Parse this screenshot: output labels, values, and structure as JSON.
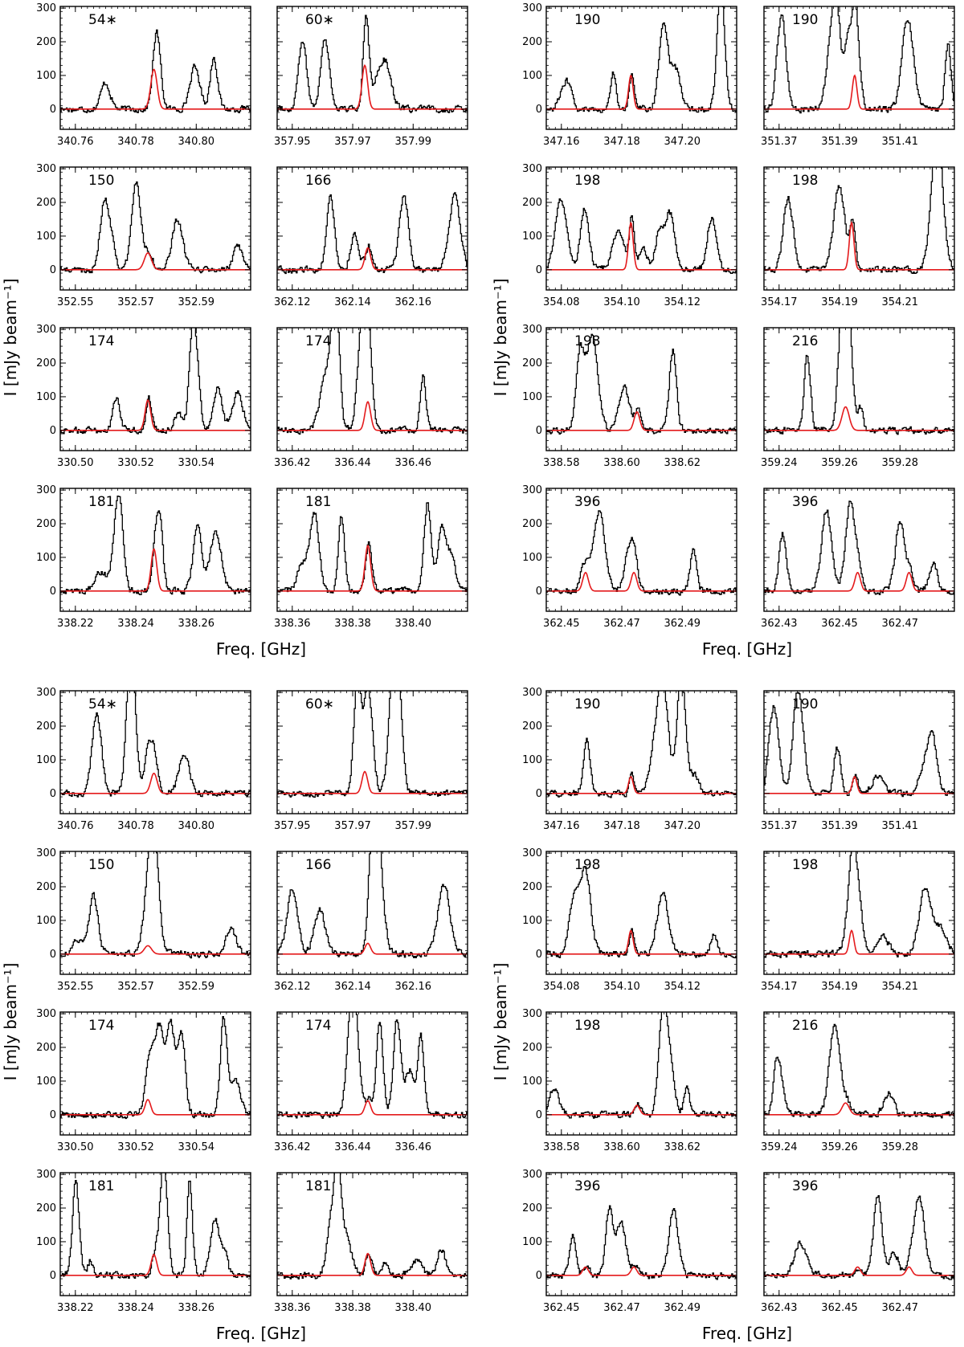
{
  "figure": {
    "axis_titles": {
      "ylabel": "I [mJy beam⁻¹]",
      "xlabel": "Freq. [GHz]"
    },
    "y_ticks": [
      "0",
      "100",
      "200",
      "300"
    ],
    "colors": {
      "spectrum": "#000000",
      "model": "#e41a1c",
      "frame": "#000000"
    }
  },
  "chart_data": [
    {
      "type": "line",
      "block": "top-left",
      "row": 0,
      "col": 0,
      "label": "54∗",
      "x_ticks": [
        "340.76",
        "340.78",
        "340.80"
      ],
      "xlim": [
        340.755,
        340.818
      ],
      "ylim": [
        -60,
        305
      ],
      "model_center": 340.786,
      "model_peak": 118,
      "model_fwhm": 0.0025,
      "xlabel": "Freq. [GHz]",
      "ylabel": "I [mJy beam⁻¹]"
    },
    {
      "type": "line",
      "block": "top-left",
      "row": 0,
      "col": 1,
      "label": "60∗",
      "x_ticks": [
        "357.95",
        "357.97",
        "357.99"
      ],
      "xlim": [
        357.945,
        358.008
      ],
      "ylim": [
        -60,
        305
      ],
      "model_center": 357.974,
      "model_peak": 130,
      "model_fwhm": 0.0022,
      "xlabel": "Freq. [GHz]",
      "ylabel": "I [mJy beam⁻¹]"
    },
    {
      "type": "line",
      "block": "top-left",
      "row": 1,
      "col": 0,
      "label": "150",
      "x_ticks": [
        "352.55",
        "352.57",
        "352.59"
      ],
      "xlim": [
        352.545,
        352.608
      ],
      "ylim": [
        -60,
        305
      ],
      "model_center": 352.574,
      "model_peak": 50,
      "model_fwhm": 0.0028,
      "xlabel": "Freq. [GHz]",
      "ylabel": "I [mJy beam⁻¹]"
    },
    {
      "type": "line",
      "block": "top-left",
      "row": 1,
      "col": 1,
      "label": "166",
      "x_ticks": [
        "362.12",
        "362.14",
        "362.16"
      ],
      "xlim": [
        362.115,
        362.178
      ],
      "ylim": [
        -60,
        305
      ],
      "model_center": 362.145,
      "model_peak": 65,
      "model_fwhm": 0.0022,
      "xlabel": "Freq. [GHz]",
      "ylabel": "I [mJy beam⁻¹]"
    },
    {
      "type": "line",
      "block": "top-left",
      "row": 2,
      "col": 0,
      "label": "174",
      "x_ticks": [
        "330.50",
        "330.52",
        "330.54"
      ],
      "xlim": [
        330.495,
        330.558
      ],
      "ylim": [
        -60,
        305
      ],
      "model_center": 330.524,
      "model_peak": 90,
      "model_fwhm": 0.0022,
      "xlabel": "Freq. [GHz]",
      "ylabel": "I [mJy beam⁻¹]"
    },
    {
      "type": "line",
      "block": "top-left",
      "row": 2,
      "col": 1,
      "label": "174",
      "x_ticks": [
        "336.42",
        "336.44",
        "336.46"
      ],
      "xlim": [
        336.415,
        336.478
      ],
      "ylim": [
        -60,
        305
      ],
      "model_center": 336.445,
      "model_peak": 85,
      "model_fwhm": 0.0022,
      "xlabel": "Freq. [GHz]",
      "ylabel": "I [mJy beam⁻¹]"
    },
    {
      "type": "line",
      "block": "top-left",
      "row": 3,
      "col": 0,
      "label": "181",
      "x_ticks": [
        "338.22",
        "338.24",
        "338.26"
      ],
      "xlim": [
        338.215,
        338.278
      ],
      "ylim": [
        -60,
        305
      ],
      "model_center": 338.246,
      "model_peak": 125,
      "model_fwhm": 0.0022,
      "xlabel": "Freq. [GHz]",
      "ylabel": "I [mJy beam⁻¹]"
    },
    {
      "type": "line",
      "block": "top-left",
      "row": 3,
      "col": 1,
      "label": "181",
      "x_ticks": [
        "338.36",
        "338.38",
        "338.40"
      ],
      "xlim": [
        338.355,
        338.418
      ],
      "ylim": [
        -60,
        305
      ],
      "model_center": 338.385,
      "model_peak": 135,
      "model_fwhm": 0.0022,
      "xlabel": "Freq. [GHz]",
      "ylabel": "I [mJy beam⁻¹]"
    },
    {
      "type": "line",
      "block": "top-right",
      "row": 0,
      "col": 0,
      "label": "190",
      "x_ticks": [
        "347.16",
        "347.18",
        "347.20"
      ],
      "xlim": [
        347.155,
        347.218
      ],
      "ylim": [
        -60,
        305
      ],
      "model_center": 347.183,
      "model_peak": 100,
      "model_fwhm": 0.0018,
      "xlabel": "Freq. [GHz]",
      "ylabel": "I [mJy beam⁻¹]"
    },
    {
      "type": "line",
      "block": "top-right",
      "row": 0,
      "col": 1,
      "label": "190",
      "x_ticks": [
        "351.37",
        "351.39",
        "351.41"
      ],
      "xlim": [
        351.365,
        351.428
      ],
      "ylim": [
        -60,
        305
      ],
      "model_center": 351.395,
      "model_peak": 100,
      "model_fwhm": 0.0018,
      "xlabel": "Freq. [GHz]",
      "ylabel": "I [mJy beam⁻¹]"
    },
    {
      "type": "line",
      "block": "top-right",
      "row": 1,
      "col": 0,
      "label": "198",
      "x_ticks": [
        "354.08",
        "354.10",
        "354.12"
      ],
      "xlim": [
        354.075,
        354.138
      ],
      "ylim": [
        -60,
        305
      ],
      "model_center": 354.103,
      "model_peak": 140,
      "model_fwhm": 0.0018,
      "xlabel": "Freq. [GHz]",
      "ylabel": "I [mJy beam⁻¹]"
    },
    {
      "type": "line",
      "block": "top-right",
      "row": 1,
      "col": 1,
      "label": "198",
      "x_ticks": [
        "354.17",
        "354.19",
        "354.21"
      ],
      "xlim": [
        354.165,
        354.228
      ],
      "ylim": [
        -60,
        305
      ],
      "model_center": 354.194,
      "model_peak": 140,
      "model_fwhm": 0.0018,
      "xlabel": "Freq. [GHz]",
      "ylabel": "I [mJy beam⁻¹]"
    },
    {
      "type": "line",
      "block": "top-right",
      "row": 2,
      "col": 0,
      "label": "198",
      "x_ticks": [
        "338.58",
        "338.60",
        "338.62"
      ],
      "xlim": [
        338.575,
        338.638
      ],
      "ylim": [
        -60,
        305
      ],
      "model_center": 338.605,
      "model_peak": 55,
      "model_fwhm": 0.0022,
      "xlabel": "Freq. [GHz]",
      "ylabel": "I [mJy beam⁻¹]"
    },
    {
      "type": "line",
      "block": "top-right",
      "row": 2,
      "col": 1,
      "label": "216",
      "x_ticks": [
        "359.24",
        "359.26",
        "359.28"
      ],
      "xlim": [
        359.235,
        359.298
      ],
      "ylim": [
        -60,
        305
      ],
      "model_center": 359.262,
      "model_peak": 70,
      "model_fwhm": 0.0028,
      "xlabel": "Freq. [GHz]",
      "ylabel": "I [mJy beam⁻¹]"
    },
    {
      "type": "line",
      "block": "top-right",
      "row": 3,
      "col": 0,
      "label": "396",
      "x_ticks": [
        "362.45",
        "362.47",
        "362.49"
      ],
      "xlim": [
        362.445,
        362.508
      ],
      "ylim": [
        -60,
        305
      ],
      "model_centers": [
        362.458,
        362.474
      ],
      "model_peak": 55,
      "model_fwhm": 0.0022,
      "xlabel": "Freq. [GHz]",
      "ylabel": "I [mJy beam⁻¹]"
    },
    {
      "type": "line",
      "block": "top-right",
      "row": 3,
      "col": 1,
      "label": "396",
      "x_ticks": [
        "362.43",
        "362.45",
        "362.47"
      ],
      "xlim": [
        362.425,
        362.488
      ],
      "ylim": [
        -60,
        305
      ],
      "model_centers": [
        362.456,
        362.473
      ],
      "model_peak": 55,
      "model_fwhm": 0.0022,
      "xlabel": "Freq. [GHz]",
      "ylabel": "I [mJy beam⁻¹]"
    },
    {
      "type": "line",
      "block": "bottom-left",
      "row": 0,
      "col": 0,
      "label": "54∗",
      "x_ticks": [
        "340.76",
        "340.78",
        "340.80"
      ],
      "xlim": [
        340.755,
        340.818
      ],
      "ylim": [
        -60,
        305
      ],
      "model_center": 340.786,
      "model_peak": 60,
      "model_fwhm": 0.0025,
      "xlabel": "Freq. [GHz]",
      "ylabel": "I [mJy beam⁻¹]"
    },
    {
      "type": "line",
      "block": "bottom-left",
      "row": 0,
      "col": 1,
      "label": "60∗",
      "x_ticks": [
        "357.95",
        "357.97",
        "357.99"
      ],
      "xlim": [
        357.945,
        358.008
      ],
      "ylim": [
        -60,
        305
      ],
      "model_center": 357.974,
      "model_peak": 65,
      "model_fwhm": 0.0022,
      "xlabel": "Freq. [GHz]",
      "ylabel": "I [mJy beam⁻¹]"
    },
    {
      "type": "line",
      "block": "bottom-left",
      "row": 1,
      "col": 0,
      "label": "150",
      "x_ticks": [
        "352.55",
        "352.57",
        "352.59"
      ],
      "xlim": [
        352.545,
        352.608
      ],
      "ylim": [
        -60,
        305
      ],
      "model_center": 352.574,
      "model_peak": 25,
      "model_fwhm": 0.0028,
      "xlabel": "Freq. [GHz]",
      "ylabel": "I [mJy beam⁻¹]"
    },
    {
      "type": "line",
      "block": "bottom-left",
      "row": 1,
      "col": 1,
      "label": "166",
      "x_ticks": [
        "362.12",
        "362.14",
        "362.16"
      ],
      "xlim": [
        362.115,
        362.178
      ],
      "ylim": [
        -60,
        305
      ],
      "model_center": 362.145,
      "model_peak": 32,
      "model_fwhm": 0.0022,
      "xlabel": "Freq. [GHz]",
      "ylabel": "I [mJy beam⁻¹]"
    },
    {
      "type": "line",
      "block": "bottom-left",
      "row": 2,
      "col": 0,
      "label": "174",
      "x_ticks": [
        "330.50",
        "330.52",
        "330.54"
      ],
      "xlim": [
        330.495,
        330.558
      ],
      "ylim": [
        -60,
        305
      ],
      "model_center": 330.524,
      "model_peak": 45,
      "model_fwhm": 0.0022,
      "xlabel": "Freq. [GHz]",
      "ylabel": "I [mJy beam⁻¹]"
    },
    {
      "type": "line",
      "block": "bottom-left",
      "row": 2,
      "col": 1,
      "label": "174",
      "x_ticks": [
        "336.42",
        "336.44",
        "336.46"
      ],
      "xlim": [
        336.415,
        336.478
      ],
      "ylim": [
        -60,
        305
      ],
      "model_center": 336.445,
      "model_peak": 42,
      "model_fwhm": 0.0022,
      "xlabel": "Freq. [GHz]",
      "ylabel": "I [mJy beam⁻¹]"
    },
    {
      "type": "line",
      "block": "bottom-left",
      "row": 3,
      "col": 0,
      "label": "181",
      "x_ticks": [
        "338.22",
        "338.24",
        "338.26"
      ],
      "xlim": [
        338.215,
        338.278
      ],
      "ylim": [
        -60,
        305
      ],
      "model_center": 338.246,
      "model_peak": 62,
      "model_fwhm": 0.0022,
      "xlabel": "Freq. [GHz]",
      "ylabel": "I [mJy beam⁻¹]"
    },
    {
      "type": "line",
      "block": "bottom-left",
      "row": 3,
      "col": 1,
      "label": "181",
      "x_ticks": [
        "338.36",
        "338.38",
        "338.40"
      ],
      "xlim": [
        338.355,
        338.418
      ],
      "ylim": [
        -60,
        305
      ],
      "model_center": 338.385,
      "model_peak": 65,
      "model_fwhm": 0.0022,
      "xlabel": "Freq. [GHz]",
      "ylabel": "I [mJy beam⁻¹]"
    },
    {
      "type": "line",
      "block": "bottom-right",
      "row": 0,
      "col": 0,
      "label": "190",
      "x_ticks": [
        "347.16",
        "347.18",
        "347.20"
      ],
      "xlim": [
        347.155,
        347.218
      ],
      "ylim": [
        -60,
        305
      ],
      "model_center": 347.183,
      "model_peak": 50,
      "model_fwhm": 0.0018,
      "xlabel": "Freq. [GHz]",
      "ylabel": "I [mJy beam⁻¹]"
    },
    {
      "type": "line",
      "block": "bottom-right",
      "row": 0,
      "col": 1,
      "label": "190",
      "x_ticks": [
        "351.37",
        "351.39",
        "351.41"
      ],
      "xlim": [
        351.365,
        351.428
      ],
      "ylim": [
        -60,
        305
      ],
      "model_center": 351.395,
      "model_peak": 50,
      "model_fwhm": 0.0018,
      "xlabel": "Freq. [GHz]",
      "ylabel": "I [mJy beam⁻¹]"
    },
    {
      "type": "line",
      "block": "bottom-right",
      "row": 1,
      "col": 0,
      "label": "198",
      "x_ticks": [
        "354.08",
        "354.10",
        "354.12"
      ],
      "xlim": [
        354.075,
        354.138
      ],
      "ylim": [
        -60,
        305
      ],
      "model_center": 354.103,
      "model_peak": 70,
      "model_fwhm": 0.0018,
      "xlabel": "Freq. [GHz]",
      "ylabel": "I [mJy beam⁻¹]"
    },
    {
      "type": "line",
      "block": "bottom-right",
      "row": 1,
      "col": 1,
      "label": "198",
      "x_ticks": [
        "354.17",
        "354.19",
        "354.21"
      ],
      "xlim": [
        354.165,
        354.228
      ],
      "ylim": [
        -60,
        305
      ],
      "model_center": 354.194,
      "model_peak": 70,
      "model_fwhm": 0.0018,
      "xlabel": "Freq. [GHz]",
      "ylabel": "I [mJy beam⁻¹]"
    },
    {
      "type": "line",
      "block": "bottom-right",
      "row": 2,
      "col": 0,
      "label": "198",
      "x_ticks": [
        "338.58",
        "338.60",
        "338.62"
      ],
      "xlim": [
        338.575,
        338.638
      ],
      "ylim": [
        -60,
        305
      ],
      "model_center": 338.605,
      "model_peak": 28,
      "model_fwhm": 0.0022,
      "xlabel": "Freq. [GHz]",
      "ylabel": "I [mJy beam⁻¹]"
    },
    {
      "type": "line",
      "block": "bottom-right",
      "row": 2,
      "col": 1,
      "label": "216",
      "x_ticks": [
        "359.24",
        "359.26",
        "359.28"
      ],
      "xlim": [
        359.235,
        359.298
      ],
      "ylim": [
        -60,
        305
      ],
      "model_center": 359.262,
      "model_peak": 35,
      "model_fwhm": 0.0028,
      "xlabel": "Freq. [GHz]",
      "ylabel": "I [mJy beam⁻¹]"
    },
    {
      "type": "line",
      "block": "bottom-right",
      "row": 3,
      "col": 0,
      "label": "396",
      "x_ticks": [
        "362.45",
        "362.47",
        "362.49"
      ],
      "xlim": [
        362.445,
        362.508
      ],
      "ylim": [
        -60,
        305
      ],
      "model_centers": [
        362.458,
        362.474
      ],
      "model_peak": 25,
      "model_fwhm": 0.0022,
      "xlabel": "Freq. [GHz]",
      "ylabel": "I [mJy beam⁻¹]"
    },
    {
      "type": "line",
      "block": "bottom-right",
      "row": 3,
      "col": 1,
      "label": "396",
      "x_ticks": [
        "362.43",
        "362.45",
        "362.47"
      ],
      "xlim": [
        362.425,
        362.488
      ],
      "ylim": [
        -60,
        305
      ],
      "model_centers": [
        362.456,
        362.473
      ],
      "model_peak": 25,
      "model_fwhm": 0.0022,
      "xlabel": "Freq. [GHz]",
      "ylabel": "I [mJy beam⁻¹]"
    }
  ]
}
